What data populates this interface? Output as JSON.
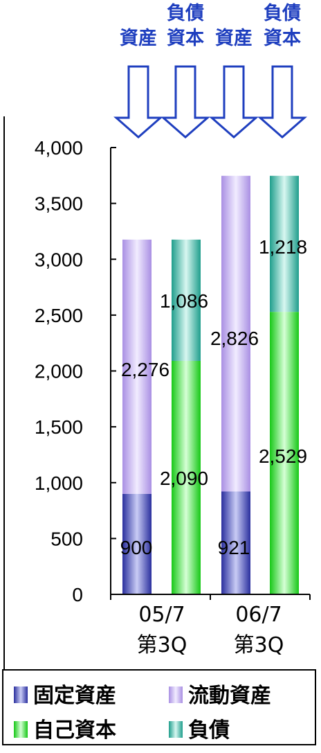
{
  "header": {
    "labels": [
      "資産",
      "負債\n資本",
      "資産",
      "負債\n資本"
    ],
    "arrow_color": "#1f3fbf",
    "text_color": "#1f3fbf"
  },
  "chart_data": {
    "type": "bar",
    "stacked": true,
    "title": "",
    "xlabel": "",
    "ylabel": "",
    "ylim": [
      0,
      4000
    ],
    "yticks": [
      0,
      500,
      1000,
      1500,
      2000,
      2500,
      3000,
      3500,
      4000
    ],
    "ytick_labels": [
      "0",
      "500",
      "1,000",
      "1,500",
      "2,000",
      "2,500",
      "3,000",
      "3,500",
      "4,000"
    ],
    "categories": [
      "05/7\n第3Q",
      "06/7\n第3Q"
    ],
    "bars": [
      {
        "period": "05/7\n第3Q",
        "side": "資産",
        "segments": [
          {
            "series": "固定資産",
            "value": 900,
            "label": "900"
          },
          {
            "series": "流動資産",
            "value": 2276,
            "label": "2,276"
          }
        ]
      },
      {
        "period": "05/7\n第3Q",
        "side": "負債資本",
        "segments": [
          {
            "series": "自己資本",
            "value": 2090,
            "label": "2,090"
          },
          {
            "series": "負債",
            "value": 1086,
            "label": "1,086"
          }
        ]
      },
      {
        "period": "06/7\n第3Q",
        "side": "資産",
        "segments": [
          {
            "series": "固定資産",
            "value": 921,
            "label": "921"
          },
          {
            "series": "流動資産",
            "value": 2826,
            "label": "2,826"
          }
        ]
      },
      {
        "period": "06/7\n第3Q",
        "side": "負債資本",
        "segments": [
          {
            "series": "自己資本",
            "value": 2529,
            "label": "2,529"
          },
          {
            "series": "負債",
            "value": 1218,
            "label": "1,218"
          }
        ]
      }
    ],
    "legend": {
      "placement": "bottom",
      "entries": [
        {
          "name": "固定資産",
          "color": "#4a4fc4"
        },
        {
          "name": "流動資産",
          "color": "#c8b4f0"
        },
        {
          "name": "自己資本",
          "color": "#33e633"
        },
        {
          "name": "負債",
          "color": "#3ab8a8"
        }
      ]
    },
    "grid": false
  }
}
